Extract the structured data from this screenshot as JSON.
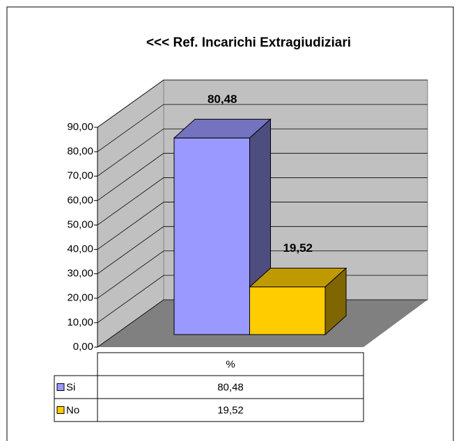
{
  "chart_data": {
    "type": "bar3d",
    "title": "<<<  Ref. Incarichi Extragiudiziari",
    "categories": [
      "%"
    ],
    "series": [
      {
        "name": "Si",
        "color": "#9999ff",
        "values": [
          80.48
        ],
        "value_labels": [
          "80,48"
        ]
      },
      {
        "name": "No",
        "color": "#ffcc00",
        "values": [
          19.52
        ],
        "value_labels": [
          "19,52"
        ]
      }
    ],
    "ylim": [
      0,
      90
    ],
    "yticks": [
      {
        "value": 0,
        "label": "0,00"
      },
      {
        "value": 10,
        "label": "10,00"
      },
      {
        "value": 20,
        "label": "20,00"
      },
      {
        "value": 30,
        "label": "30,00"
      },
      {
        "value": 40,
        "label": "40,00"
      },
      {
        "value": 50,
        "label": "50,00"
      },
      {
        "value": 60,
        "label": "60,00"
      },
      {
        "value": 70,
        "label": "70,00"
      },
      {
        "value": 80,
        "label": "80,00"
      },
      {
        "value": 90,
        "label": "90,00"
      }
    ],
    "grid": true
  }
}
